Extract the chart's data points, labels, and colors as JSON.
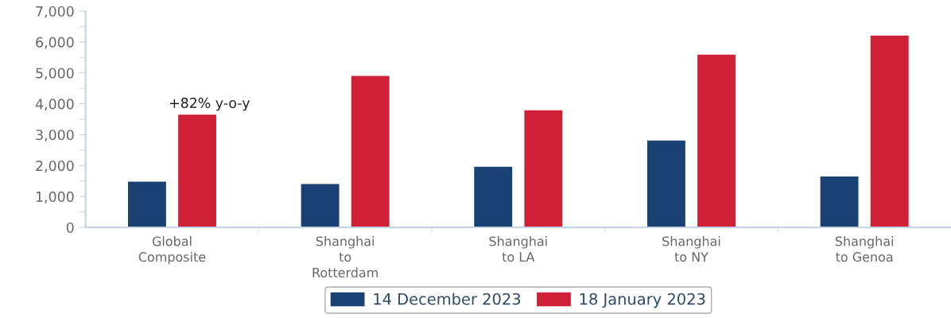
{
  "chart_data": {
    "type": "bar",
    "categories": [
      "Global\nComposite",
      "Shanghai\nto\nRotterdam",
      "Shanghai\nto LA",
      "Shanghai\nto NY",
      "Shanghai\nto Genoa"
    ],
    "series": [
      {
        "name": "14 December 2023",
        "color": "#1a4173",
        "values": [
          1480,
          1400,
          1960,
          2810,
          1650
        ]
      },
      {
        "name": "18 January 2023",
        "color": "#cf2037",
        "values": [
          3650,
          4900,
          3790,
          5590,
          6210
        ]
      }
    ],
    "ylim": [
      0,
      7000
    ],
    "yticks": [
      {
        "value": 0,
        "label": "0"
      },
      {
        "value": 1000,
        "label": "1,000"
      },
      {
        "value": 2000,
        "label": "2,000"
      },
      {
        "value": 3000,
        "label": "3,000"
      },
      {
        "value": 4000,
        "label": "4,000"
      },
      {
        "value": 5000,
        "label": "5,000"
      },
      {
        "value": 6000,
        "label": "6,000"
      },
      {
        "value": 7000,
        "label": "7,000"
      }
    ],
    "annotations": [
      "+82% y-o-y"
    ],
    "grid": false,
    "legend": "bottom"
  }
}
